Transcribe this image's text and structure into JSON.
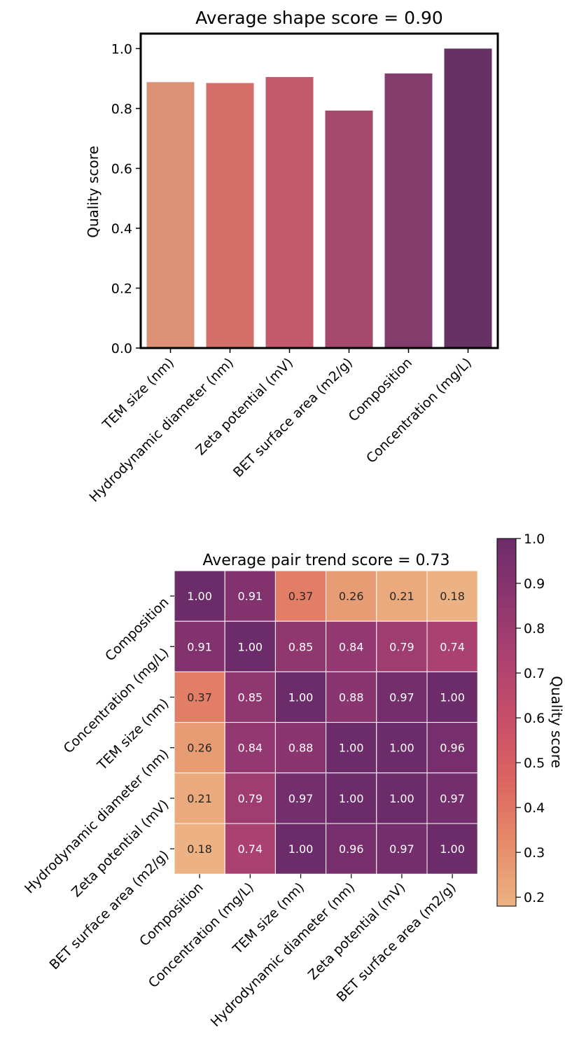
{
  "chart_data": [
    {
      "type": "bar",
      "title": "Average shape score = 0.90",
      "xlabel": "",
      "ylabel": "Quality score",
      "categories": [
        "TEM size (nm)",
        "Hydrodynamic diameter (nm)",
        "Zeta potential (mV)",
        "BET surface area (m2/g)",
        "Composition",
        "Concentration (mg/L)"
      ],
      "values": [
        0.888,
        0.885,
        0.905,
        0.793,
        0.917,
        1.0
      ],
      "ylim": [
        0,
        1.05
      ],
      "yticks": [
        "0.0",
        "0.2",
        "0.4",
        "0.6",
        "0.8",
        "1.0"
      ],
      "colors": [
        "#dc9176",
        "#d3706a",
        "#c35a6b",
        "#a54a6c",
        "#833d6c",
        "#653263"
      ],
      "grid": false
    },
    {
      "type": "heatmap",
      "title": "Average pair trend score = 0.73",
      "rows": [
        "Composition",
        "Concentration (mg/L)",
        "TEM size (nm)",
        "Hydrodynamic diameter (nm)",
        "Zeta potential (mV)",
        "BET surface area (m2/g)"
      ],
      "columns": [
        "Composition",
        "Concentration (mg/L)",
        "TEM size (nm)",
        "Hydrodynamic diameter (nm)",
        "Zeta potential (mV)",
        "BET surface area (m2/g)"
      ],
      "values": [
        [
          1.0,
          0.91,
          0.37,
          0.26,
          0.21,
          0.18
        ],
        [
          0.91,
          1.0,
          0.85,
          0.84,
          0.79,
          0.74
        ],
        [
          0.37,
          0.85,
          1.0,
          0.88,
          0.97,
          1.0
        ],
        [
          0.26,
          0.84,
          0.88,
          1.0,
          1.0,
          0.96
        ],
        [
          0.21,
          0.79,
          0.97,
          1.0,
          1.0,
          0.97
        ],
        [
          0.18,
          0.74,
          1.0,
          0.96,
          0.97,
          1.0
        ]
      ],
      "colorbar": {
        "label": "Quality score",
        "range": [
          0.18,
          1.0
        ],
        "ticks": [
          "0.2",
          "0.3",
          "0.4",
          "0.5",
          "0.6",
          "0.7",
          "0.8",
          "0.9",
          "1.0"
        ],
        "colormap": [
          "#ecb283",
          "#e68c6a",
          "#dc6660",
          "#c94f68",
          "#ad4270",
          "#8e3670",
          "#6c2c6a"
        ]
      },
      "grid": false
    }
  ]
}
